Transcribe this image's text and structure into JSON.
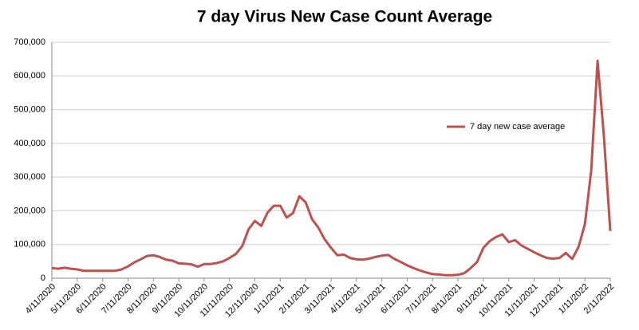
{
  "chart_data": {
    "type": "line",
    "title": "7 day Virus New Case Count Average",
    "categories": [
      "4/11/2020",
      null,
      null,
      null,
      "5/11/2020",
      null,
      null,
      null,
      "6/11/2020",
      null,
      null,
      null,
      "7/11/2020",
      null,
      null,
      null,
      "8/11/2020",
      null,
      null,
      null,
      "9/11/2020",
      null,
      null,
      null,
      "10/11/2020",
      null,
      null,
      null,
      "11/11/2020",
      null,
      null,
      null,
      "12/11/2020",
      null,
      null,
      null,
      "1/11/2021",
      null,
      null,
      null,
      "2/11/2021",
      null,
      null,
      null,
      "3/11/2021",
      null,
      null,
      null,
      "4/11/2021",
      null,
      null,
      null,
      "5/11/2021",
      null,
      null,
      null,
      "6/11/2021",
      null,
      null,
      null,
      "7/11/2021",
      null,
      null,
      null,
      "8/11/2021",
      null,
      null,
      null,
      "9/11/2021",
      null,
      null,
      null,
      "10/11/2021",
      null,
      null,
      null,
      "11/11/2021",
      null,
      null,
      null,
      "12/11/2021",
      null,
      null,
      null,
      "1/11/2022",
      null,
      null,
      null,
      "2/11/2022"
    ],
    "series": [
      {
        "name": "7 day new case average",
        "color": "#c0504d",
        "values": [
          30000,
          28000,
          31000,
          28000,
          26000,
          22000,
          22000,
          22000,
          22000,
          22000,
          22000,
          26000,
          35000,
          47000,
          56000,
          66000,
          68000,
          63000,
          55000,
          52000,
          44000,
          43000,
          41000,
          34000,
          42000,
          42000,
          45000,
          50000,
          60000,
          72000,
          95000,
          145000,
          170000,
          155000,
          195000,
          215000,
          215000,
          180000,
          193000,
          243000,
          225000,
          175000,
          150000,
          115000,
          90000,
          68000,
          70000,
          60000,
          56000,
          55000,
          58000,
          63000,
          67000,
          69000,
          57000,
          48000,
          38000,
          30000,
          23000,
          17000,
          12000,
          11000,
          9000,
          9000,
          10000,
          15000,
          30000,
          48000,
          90000,
          110000,
          122000,
          130000,
          107000,
          113000,
          97000,
          87000,
          77000,
          68000,
          60000,
          58000,
          60000,
          75000,
          57000,
          93000,
          160000,
          320000,
          645000,
          420000,
          140000
        ]
      }
    ],
    "ylim": [
      0,
      700000
    ],
    "yticks": [
      0,
      {
        "value": 100000,
        "label": "100,000"
      },
      {
        "value": 200000,
        "label": "200,000"
      },
      {
        "value": 300000,
        "label": "300,000"
      },
      {
        "value": 400000,
        "label": "400,000"
      },
      {
        "value": 500000,
        "label": "500,000"
      },
      {
        "value": 600000,
        "label": "600,000"
      },
      {
        "value": 700000,
        "label": "700,000"
      }
    ],
    "grid": true,
    "legend": "right"
  }
}
